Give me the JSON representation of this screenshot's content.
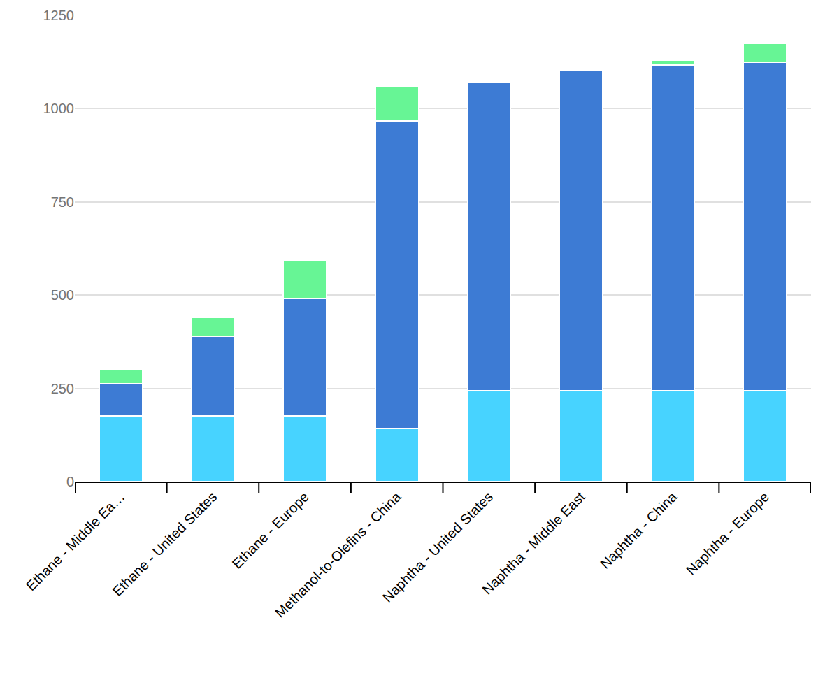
{
  "chart_data": {
    "type": "bar",
    "stacked": true,
    "grid": true,
    "categories": [
      "Ethane - Middle Ea…",
      "Ethane - United States",
      "Ethane - Europe",
      "Methanol-to-Olefins - China",
      "Naphtha - United States",
      "Naphtha - Middle East",
      "Naphtha - China",
      "Naphtha - Europe"
    ],
    "series": [
      {
        "color": "#47d3ff",
        "values": [
          176,
          176,
          176,
          142,
          244,
          244,
          244,
          244
        ]
      },
      {
        "color": "#3d7bd4",
        "values": [
          86,
          214,
          315,
          825,
          826,
          860,
          873,
          880
        ]
      },
      {
        "color": "#67f595",
        "values": [
          40,
          50,
          103,
          92,
          0,
          0,
          13,
          51
        ]
      }
    ],
    "ylim": [
      0,
      1250
    ],
    "yticks": [
      0,
      250,
      500,
      750,
      1000,
      1250
    ]
  }
}
